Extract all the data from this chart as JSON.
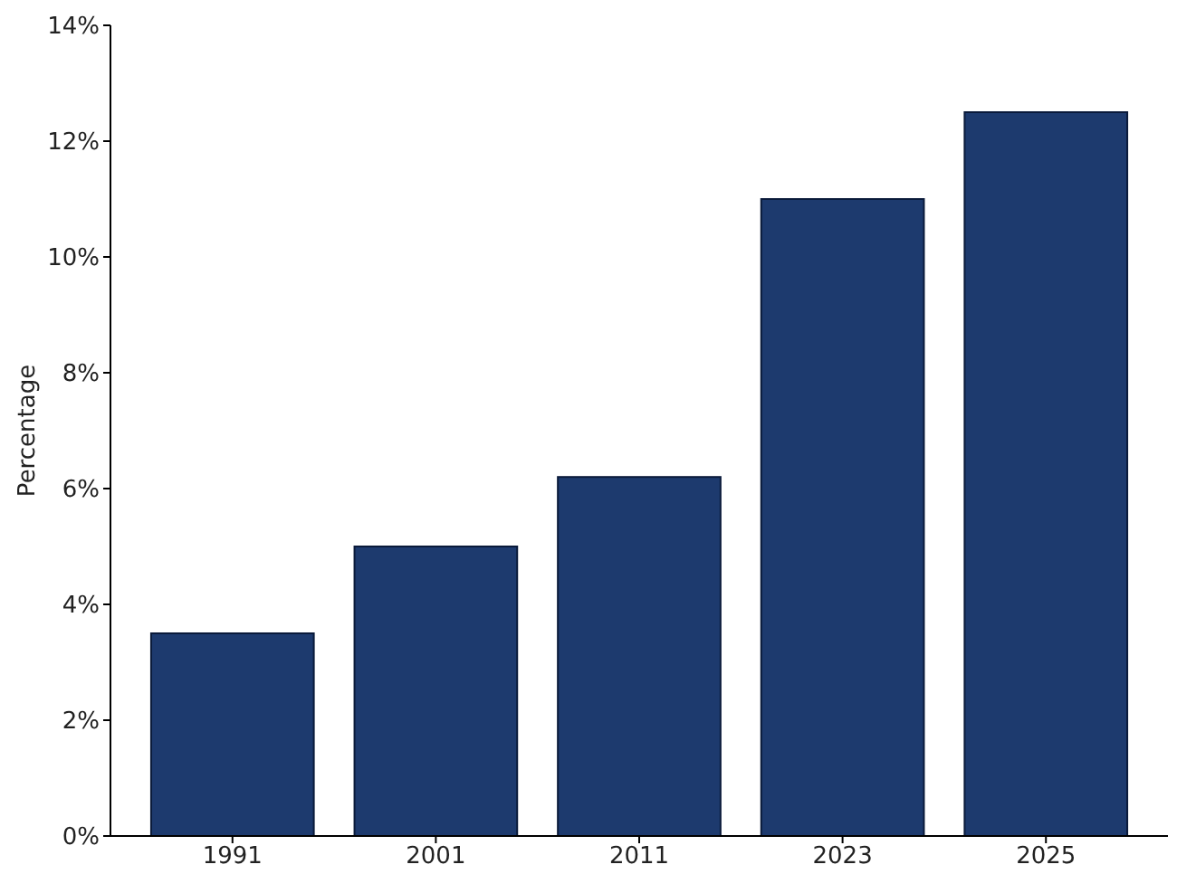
{
  "chart_data": {
    "type": "bar",
    "ylabel": "Percentage",
    "categories": [
      "1991",
      "2001",
      "2011",
      "2023",
      "2025"
    ],
    "values": [
      3.5,
      5.0,
      6.2,
      11.0,
      12.5
    ],
    "color": "#1d3a6e",
    "ylim": [
      0,
      14
    ],
    "yticks": [
      {
        "value": 0,
        "label": "0%"
      },
      {
        "value": 2,
        "label": "2%"
      },
      {
        "value": 4,
        "label": "4%"
      },
      {
        "value": 6,
        "label": "6%"
      },
      {
        "value": 8,
        "label": "8%"
      },
      {
        "value": 10,
        "label": "10%"
      },
      {
        "value": 12,
        "label": "12%"
      },
      {
        "value": 14,
        "label": "14%"
      }
    ],
    "grid": false
  }
}
